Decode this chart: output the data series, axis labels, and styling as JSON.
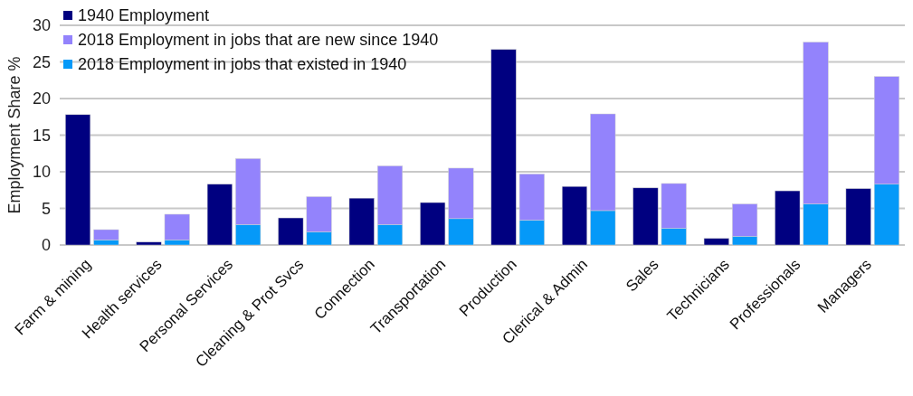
{
  "chart_data": {
    "type": "bar",
    "ylabel": "Employment Share %",
    "categories": [
      "Farm & mining",
      null,
      "Health services",
      null,
      "Personal Services",
      null,
      "Cleaning & Prot Svcs",
      null,
      "Connection",
      null,
      "Transportation",
      null,
      "Production",
      null,
      "Clerical & Admin",
      null,
      "Sales",
      null,
      "Technicians",
      null,
      "Professionals",
      null,
      "Managers",
      null
    ],
    "stacked": true,
    "series": [
      {
        "name": "1940 Employment",
        "color": "#000080",
        "values": [
          17.8,
          null,
          0.4,
          null,
          8.3,
          null,
          3.7,
          null,
          6.4,
          null,
          5.8,
          null,
          26.7,
          null,
          8.0,
          null,
          7.8,
          null,
          0.9,
          null,
          7.4,
          null,
          7.7,
          null
        ]
      },
      {
        "name": "2018 Employment in jobs that existed in 1940",
        "color": "#0599f8",
        "values": [
          null,
          0.7,
          null,
          0.7,
          null,
          2.8,
          null,
          1.8,
          null,
          2.8,
          null,
          3.6,
          null,
          3.4,
          null,
          4.7,
          null,
          2.3,
          null,
          1.2,
          null,
          5.6,
          null,
          8.3
        ]
      },
      {
        "name": "2018 Employment in jobs that are new since 1940",
        "color": "#9383fc",
        "values": [
          null,
          1.4,
          null,
          3.5,
          null,
          9.0,
          null,
          4.8,
          null,
          8.0,
          null,
          6.9,
          null,
          6.3,
          null,
          13.2,
          null,
          6.1,
          null,
          4.4,
          null,
          22.1,
          null,
          14.7
        ]
      }
    ],
    "ylim": [
      0,
      30
    ],
    "yticks": [
      0,
      5,
      10,
      15,
      20,
      25,
      30
    ],
    "grid": "y",
    "legend": "top left"
  }
}
